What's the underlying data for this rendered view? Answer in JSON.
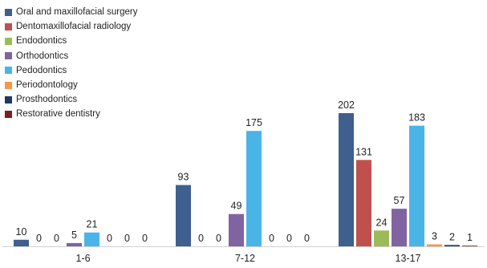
{
  "chart_data": {
    "type": "bar",
    "categories": [
      "1-6",
      "7-12",
      "13-17"
    ],
    "series": [
      {
        "name": "Oral and maxillofacial surgery",
        "color": "#3f5f8f",
        "values": [
          10,
          93,
          202
        ]
      },
      {
        "name": "Dentomaxillofacial radiology",
        "color": "#c0504d",
        "values": [
          0,
          0,
          131
        ]
      },
      {
        "name": "Endodontics",
        "color": "#9bbb59",
        "values": [
          0,
          0,
          24
        ]
      },
      {
        "name": "Orthodontics",
        "color": "#8064a2",
        "values": [
          5,
          49,
          57
        ]
      },
      {
        "name": "Pedodontics",
        "color": "#4bb4e6",
        "values": [
          21,
          175,
          183
        ]
      },
      {
        "name": "Periodontology",
        "color": "#f79646",
        "values": [
          0,
          0,
          3
        ]
      },
      {
        "name": "Prosthodontics",
        "color": "#1f3864",
        "values": [
          0,
          0,
          2
        ]
      },
      {
        "name": "Restorative dentistry",
        "color": "#7b2020",
        "values": [
          0,
          0,
          1
        ]
      }
    ],
    "ylim": [
      0,
      202
    ],
    "legend_position": "top-left",
    "grid": false
  }
}
